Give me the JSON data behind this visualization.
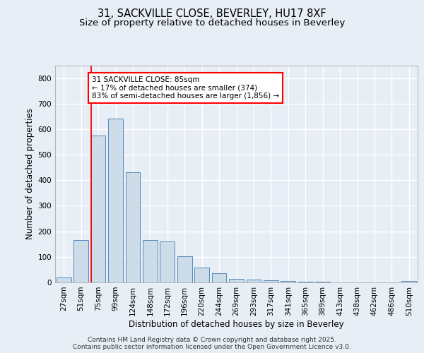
{
  "title1": "31, SACKVILLE CLOSE, BEVERLEY, HU17 8XF",
  "title2": "Size of property relative to detached houses in Beverley",
  "xlabel": "Distribution of detached houses by size in Beverley",
  "ylabel": "Number of detached properties",
  "categories": [
    "27sqm",
    "51sqm",
    "75sqm",
    "99sqm",
    "124sqm",
    "148sqm",
    "172sqm",
    "196sqm",
    "220sqm",
    "244sqm",
    "269sqm",
    "293sqm",
    "317sqm",
    "341sqm",
    "365sqm",
    "389sqm",
    "413sqm",
    "438sqm",
    "462sqm",
    "486sqm",
    "510sqm"
  ],
  "bar_values": [
    20,
    165,
    575,
    640,
    430,
    165,
    160,
    103,
    58,
    35,
    14,
    10,
    8,
    5,
    3,
    2,
    1,
    0,
    0,
    0,
    5
  ],
  "bar_color": "#ccdce8",
  "bar_edge_color": "#5588bb",
  "redline_x": 1.575,
  "annotation_line1": "31 SACKVILLE CLOSE: 85sqm",
  "annotation_line2": "← 17% of detached houses are smaller (374)",
  "annotation_line3": "83% of semi-detached houses are larger (1,856) →",
  "ylim_max": 850,
  "yticks": [
    0,
    100,
    200,
    300,
    400,
    500,
    600,
    700,
    800
  ],
  "bg_color": "#e8eef5",
  "grid_color": "#ffffff",
  "footer1": "Contains HM Land Registry data © Crown copyright and database right 2025.",
  "footer2": "Contains public sector information licensed under the Open Government Licence v3.0.",
  "title1_fontsize": 10.5,
  "title2_fontsize": 9.5,
  "ylabel_fontsize": 8.5,
  "xlabel_fontsize": 8.5,
  "tick_fontsize": 7.5,
  "annot_fontsize": 7.5,
  "footer_fontsize": 6.5
}
